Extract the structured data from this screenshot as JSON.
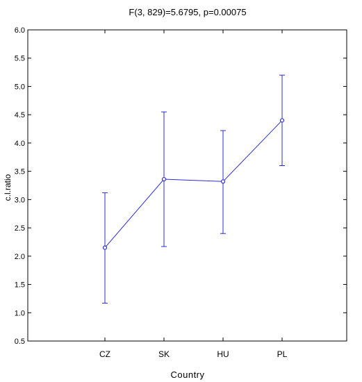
{
  "chart_data": {
    "type": "line",
    "title": "F(3, 829)=5.6795, p=0.00075",
    "xlabel": "Country",
    "ylabel": "c.l.ratio",
    "categories": [
      "CZ",
      "SK",
      "HU",
      "PL"
    ],
    "series": [
      {
        "values": [
          2.15,
          3.36,
          3.32,
          4.4
        ],
        "error_low": [
          1.17,
          2.17,
          2.4,
          3.6
        ],
        "error_high": [
          3.12,
          4.55,
          4.22,
          5.2
        ]
      }
    ],
    "ylim": [
      0.5,
      6.0
    ],
    "yticks": [
      "0.5",
      "1.0",
      "1.5",
      "2.0",
      "2.5",
      "3.0",
      "3.5",
      "4.0",
      "4.5",
      "5.0",
      "5.5",
      "6.0"
    ],
    "grid": false,
    "legend": "none",
    "colors": {
      "series": "#2b2bd4",
      "axis": "#000000"
    }
  }
}
